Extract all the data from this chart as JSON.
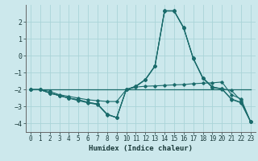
{
  "title": "",
  "xlabel": "Humidex (Indice chaleur)",
  "background_color": "#cce8ec",
  "line_color": "#1a6b6b",
  "grid_color": "#aad4d8",
  "xlim": [
    -0.5,
    23.5
  ],
  "ylim": [
    -4.5,
    3.0
  ],
  "xticks": [
    0,
    1,
    2,
    3,
    4,
    5,
    6,
    7,
    8,
    9,
    10,
    11,
    12,
    13,
    14,
    15,
    16,
    17,
    18,
    19,
    20,
    21,
    22,
    23
  ],
  "yticks": [
    -4,
    -3,
    -2,
    -1,
    0,
    1,
    2
  ],
  "lines": [
    {
      "x": [
        0,
        1,
        2,
        3,
        4,
        5,
        6,
        7,
        8,
        9,
        10,
        11,
        12,
        13,
        14,
        15,
        16,
        17,
        18,
        19,
        20,
        21,
        22,
        23
      ],
      "y": [
        -2.0,
        -2.0,
        -2.0,
        -2.0,
        -2.0,
        -2.0,
        -2.0,
        -2.0,
        -2.0,
        -2.0,
        -2.0,
        -2.0,
        -2.0,
        -2.0,
        -2.0,
        -2.0,
        -2.0,
        -2.0,
        -2.0,
        -2.0,
        -2.0,
        -2.0,
        -2.0,
        -2.0
      ],
      "marker": false
    },
    {
      "x": [
        0,
        1,
        2,
        3,
        4,
        5,
        6,
        7,
        8,
        9,
        10,
        11,
        12,
        13,
        14,
        15,
        16,
        17,
        18,
        19,
        20,
        21,
        22,
        23
      ],
      "y": [
        -2.0,
        -2.0,
        -2.1,
        -2.3,
        -2.4,
        -2.5,
        -2.6,
        -2.65,
        -2.7,
        -2.7,
        -2.0,
        -1.85,
        -1.8,
        -1.78,
        -1.75,
        -1.72,
        -1.7,
        -1.65,
        -1.62,
        -1.6,
        -1.55,
        -2.3,
        -2.55,
        -3.9
      ],
      "marker": true
    },
    {
      "x": [
        0,
        1,
        2,
        3,
        4,
        5,
        6,
        7,
        8,
        9,
        10,
        11,
        12,
        13,
        14,
        15,
        16,
        17,
        18,
        19,
        20,
        21,
        22,
        23
      ],
      "y": [
        -2.0,
        -2.0,
        -2.2,
        -2.35,
        -2.5,
        -2.6,
        -2.75,
        -2.85,
        -3.45,
        -3.65,
        -2.0,
        -1.8,
        -1.4,
        -0.6,
        2.65,
        2.65,
        1.65,
        -0.15,
        -1.3,
        -1.85,
        -1.95,
        -2.05,
        -2.65,
        -3.9
      ],
      "marker": true
    },
    {
      "x": [
        0,
        1,
        2,
        3,
        4,
        5,
        6,
        7,
        8,
        9,
        10,
        11,
        12,
        13,
        14,
        15,
        16,
        17,
        18,
        19,
        20,
        21,
        22,
        23
      ],
      "y": [
        -2.0,
        -2.0,
        -2.2,
        -2.35,
        -2.5,
        -2.6,
        -2.75,
        -2.85,
        -3.45,
        -3.65,
        -2.0,
        -1.8,
        -1.4,
        -0.6,
        2.65,
        2.65,
        1.65,
        -0.15,
        -1.3,
        -1.85,
        -1.95,
        -2.55,
        -2.75,
        -3.9
      ],
      "marker": true
    },
    {
      "x": [
        0,
        1,
        2,
        3,
        4,
        5,
        6,
        7,
        8,
        9,
        10,
        11,
        12,
        13,
        14,
        15,
        16,
        17,
        18,
        19,
        20,
        21,
        22,
        23
      ],
      "y": [
        -2.0,
        -2.0,
        -2.2,
        -2.35,
        -2.5,
        -2.65,
        -2.78,
        -2.88,
        -3.48,
        -3.65,
        -2.0,
        -1.82,
        -1.42,
        -0.62,
        2.63,
        2.63,
        1.63,
        -0.17,
        -1.33,
        -1.87,
        -1.97,
        -2.58,
        -2.78,
        -3.9
      ],
      "marker": true
    }
  ]
}
